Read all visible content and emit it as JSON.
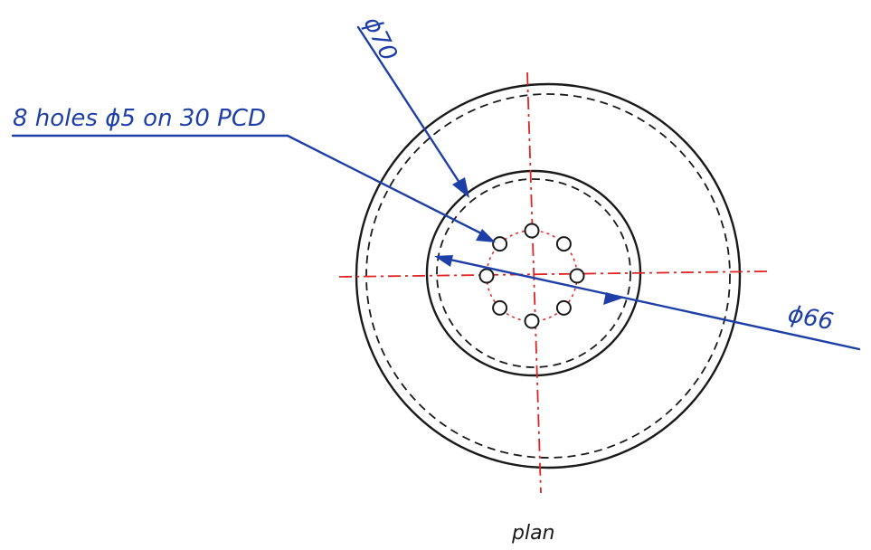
{
  "drawing": {
    "view_label": "plan",
    "annotations": {
      "outer_diameter": "ϕ70",
      "inner_diameter": "ϕ66",
      "holes_note": "8 holes ϕ5 on 30 PCD"
    },
    "colors": {
      "outline": "#1a1a1a",
      "centerline": "#e02424",
      "dimension": "#1f3fa8"
    },
    "hole_count": 8
  }
}
